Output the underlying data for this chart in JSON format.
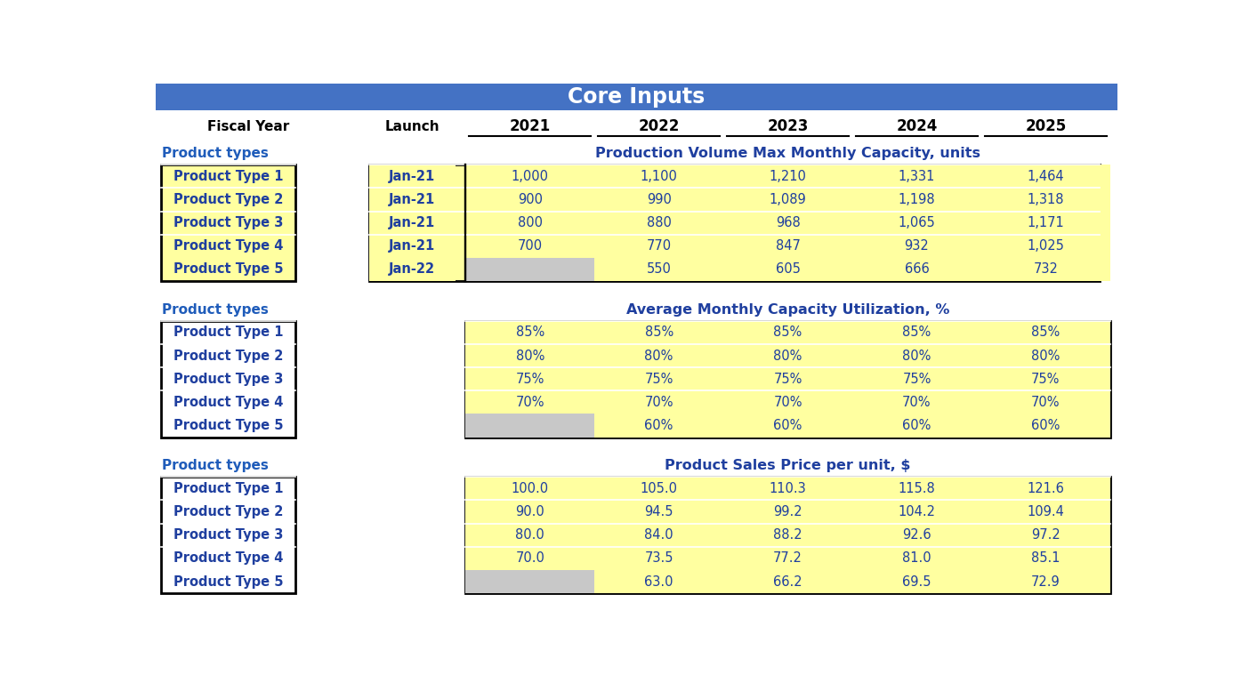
{
  "title": "Core Inputs",
  "title_bg": "#4472C4",
  "title_color": "#FFFFFF",
  "section1_label": "Product types",
  "section1_title": "Production Volume Max Monthly Capacity, units",
  "section2_label": "Product types",
  "section2_title": "Average Monthly Capacity Utilization, %",
  "section3_label": "Product types",
  "section3_title": "Product Sales Price per unit, $",
  "product_types": [
    "Product Type 1",
    "Product Type 2",
    "Product Type 3",
    "Product Type 4",
    "Product Type 5"
  ],
  "launch_dates": [
    "Jan-21",
    "Jan-21",
    "Jan-21",
    "Jan-21",
    "Jan-22"
  ],
  "section1_data": [
    [
      1000,
      1100,
      1210,
      1331,
      1464
    ],
    [
      900,
      990,
      1089,
      1198,
      1318
    ],
    [
      800,
      880,
      968,
      1065,
      1171
    ],
    [
      700,
      770,
      847,
      932,
      1025
    ],
    [
      null,
      550,
      605,
      666,
      732
    ]
  ],
  "section2_data": [
    [
      "85%",
      "85%",
      "85%",
      "85%",
      "85%"
    ],
    [
      "80%",
      "80%",
      "80%",
      "80%",
      "80%"
    ],
    [
      "75%",
      "75%",
      "75%",
      "75%",
      "75%"
    ],
    [
      "70%",
      "70%",
      "70%",
      "70%",
      "70%"
    ],
    [
      null,
      "60%",
      "60%",
      "60%",
      "60%"
    ]
  ],
  "section3_data": [
    [
      100.0,
      105.0,
      110.3,
      115.8,
      121.6
    ],
    [
      90.0,
      94.5,
      99.2,
      104.2,
      109.4
    ],
    [
      80.0,
      84.0,
      88.2,
      92.6,
      97.2
    ],
    [
      70.0,
      73.5,
      77.2,
      81.0,
      85.1
    ],
    [
      null,
      63.0,
      66.2,
      69.5,
      72.9
    ]
  ],
  "yellow_bg": "#FFFFA0",
  "gray_bg": "#C8C8C8",
  "blue_text": "#1F3F9F",
  "section_label_color": "#1F5CBA",
  "section_title_color": "#1F3F9F",
  "header_text": "#000000",
  "white_bg": "#FFFFFF",
  "border_color": "#000000",
  "title_fontsize": 17,
  "header_fontsize": 11,
  "label_fontsize": 11,
  "data_fontsize": 10.5
}
